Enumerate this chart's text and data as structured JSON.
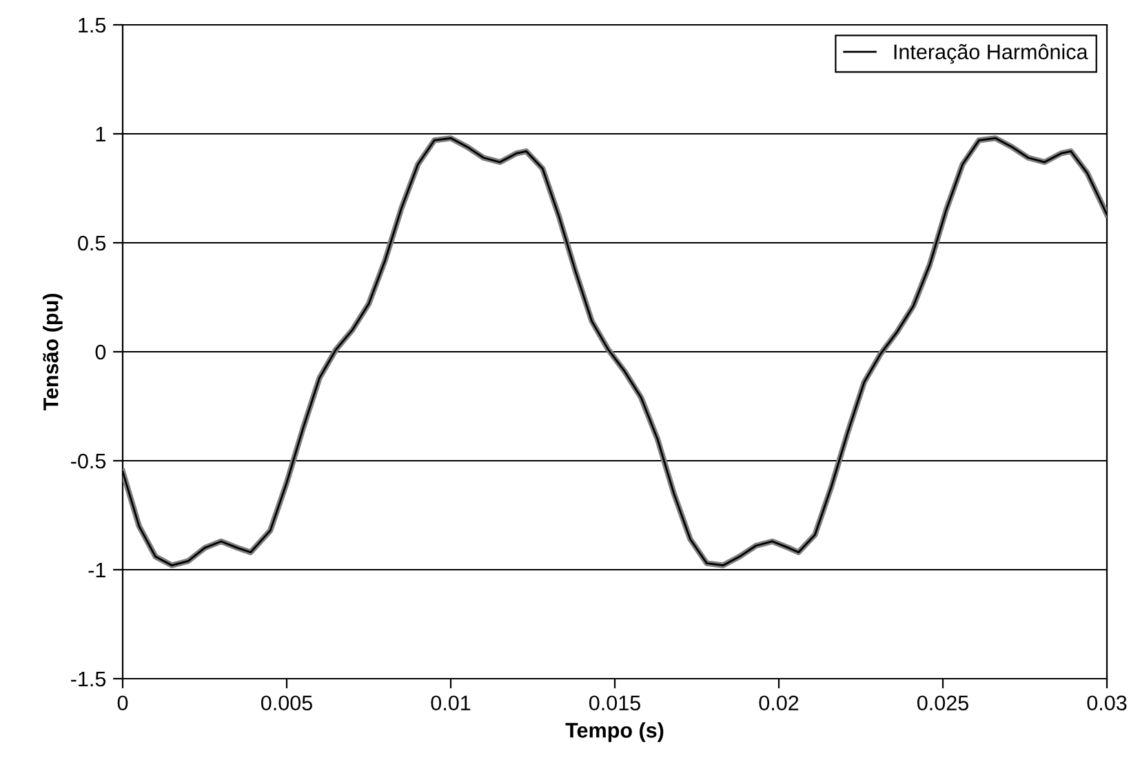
{
  "chart_data": {
    "type": "line",
    "xlabel": "Tempo (s)",
    "ylabel": "Tensão (pu)",
    "x": [
      0,
      0.0005,
      0.001,
      0.0015,
      0.002,
      0.0025,
      0.003,
      0.0035,
      0.0039,
      0.0045,
      0.005,
      0.0055,
      0.006,
      0.0065,
      0.007,
      0.0075,
      0.008,
      0.0085,
      0.009,
      0.0095,
      0.01,
      0.0105,
      0.011,
      0.0115,
      0.012,
      0.0123,
      0.0128,
      0.0133,
      0.0138,
      0.0143,
      0.0148,
      0.0153,
      0.0158,
      0.0163,
      0.0168,
      0.0173,
      0.0178,
      0.0183,
      0.0188,
      0.0193,
      0.0198,
      0.0203,
      0.0206,
      0.0211,
      0.0216,
      0.0221,
      0.0226,
      0.0231,
      0.0236,
      0.0241,
      0.0246,
      0.0251,
      0.0256,
      0.0261,
      0.0266,
      0.0271,
      0.0276,
      0.0281,
      0.0286,
      0.0289,
      0.0294,
      0.03
    ],
    "series": [
      {
        "color": "#808080",
        "values": [
          -0.55,
          -0.8,
          -0.94,
          -0.98,
          -0.96,
          -0.9,
          -0.87,
          -0.9,
          -0.92,
          -0.82,
          -0.6,
          -0.35,
          -0.12,
          0.01,
          0.1,
          0.22,
          0.42,
          0.66,
          0.86,
          0.97,
          0.98,
          0.94,
          0.89,
          0.87,
          0.91,
          0.92,
          0.84,
          0.62,
          0.37,
          0.14,
          0.01,
          -0.09,
          -0.21,
          -0.4,
          -0.65,
          -0.86,
          -0.97,
          -0.98,
          -0.94,
          -0.89,
          -0.87,
          -0.9,
          -0.92,
          -0.84,
          -0.62,
          -0.37,
          -0.14,
          -0.01,
          0.09,
          0.21,
          0.4,
          0.65,
          0.86,
          0.97,
          0.98,
          0.94,
          0.89,
          0.87,
          0.91,
          0.92,
          0.82,
          0.63
        ]
      },
      {
        "name": "Interação Harmônica",
        "color": "#000000",
        "values": [
          -0.55,
          -0.8,
          -0.94,
          -0.98,
          -0.96,
          -0.9,
          -0.87,
          -0.9,
          -0.92,
          -0.82,
          -0.6,
          -0.35,
          -0.12,
          0.01,
          0.1,
          0.22,
          0.42,
          0.66,
          0.86,
          0.97,
          0.98,
          0.94,
          0.89,
          0.87,
          0.91,
          0.92,
          0.84,
          0.62,
          0.37,
          0.14,
          0.01,
          -0.09,
          -0.21,
          -0.4,
          -0.65,
          -0.86,
          -0.97,
          -0.98,
          -0.94,
          -0.89,
          -0.87,
          -0.9,
          -0.92,
          -0.84,
          -0.62,
          -0.37,
          -0.14,
          -0.01,
          0.09,
          0.21,
          0.4,
          0.65,
          0.86,
          0.97,
          0.98,
          0.94,
          0.89,
          0.87,
          0.91,
          0.92,
          0.82,
          0.63
        ]
      }
    ],
    "xlim": [
      0,
      0.03
    ],
    "xticks": [
      0,
      0.005,
      0.01,
      0.015,
      0.02,
      0.025,
      0.03
    ],
    "ylim": [
      -1.5,
      1.5
    ],
    "yticks": [
      -1.5,
      -1,
      -0.5,
      0,
      0.5,
      1,
      1.5
    ],
    "grid": "y",
    "legend": "top right",
    "marker": "none",
    "line_style": "solid"
  }
}
